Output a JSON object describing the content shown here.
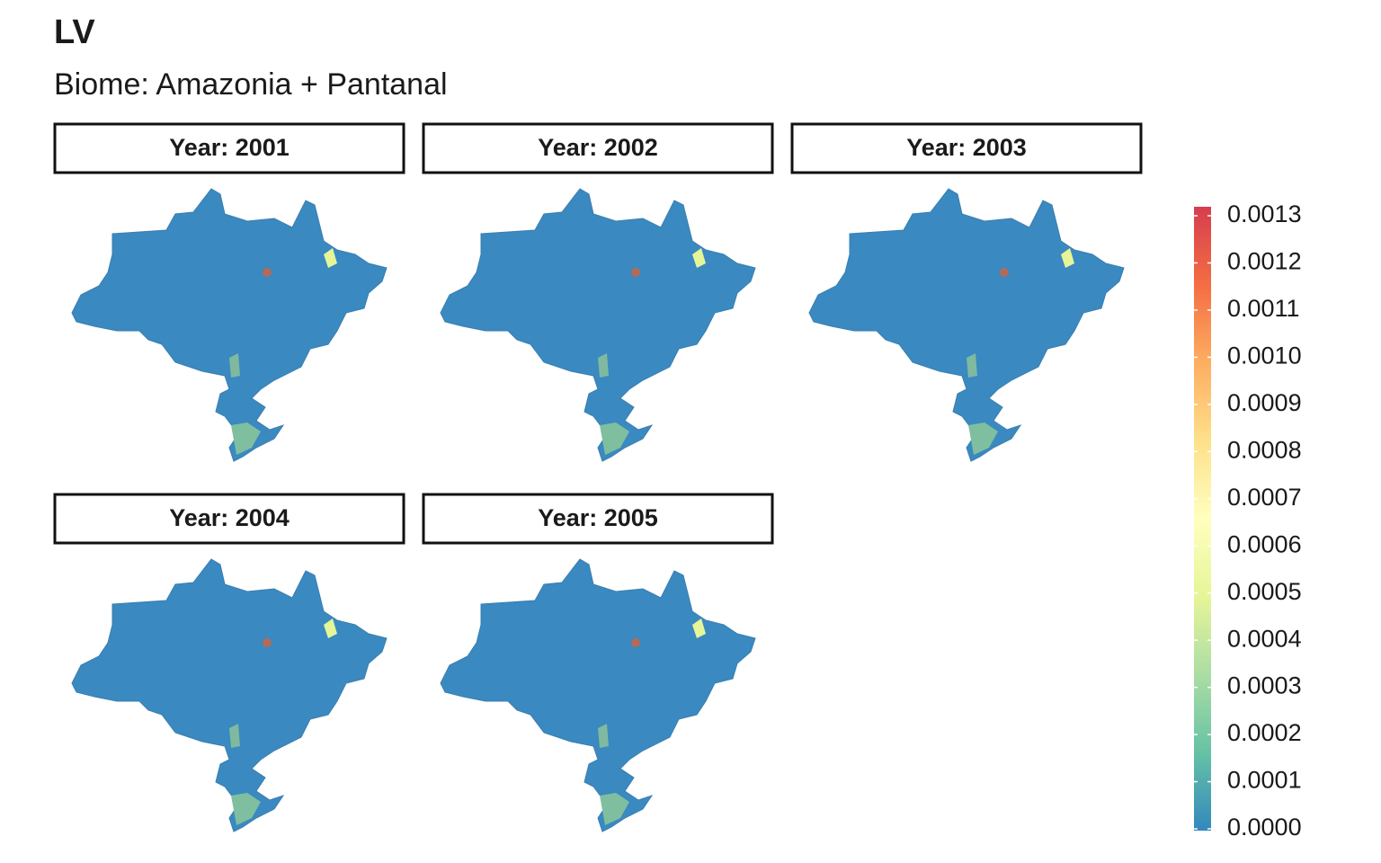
{
  "title": "LV",
  "subtitle": "Biome: Amazonia + Pantanal",
  "panels": [
    "Year: 2001",
    "Year: 2002",
    "Year: 2003",
    "Year: 2004",
    "Year: 2005"
  ],
  "chart_data": {
    "type": "colorbar",
    "ylim": [
      0,
      0.0013
    ],
    "yticks": [
      {
        "value": 0,
        "label": "0.0000"
      },
      0.0001,
      0.0002,
      0.0003,
      0.0004,
      0.0005,
      0.0006,
      0.0007,
      0.0008,
      0.0009,
      {
        "value": 0.001,
        "label": "0.0010"
      },
      0.0011,
      0.0012,
      0.0013
    ],
    "colors": [
      "#3288bd",
      "#66c2a5",
      "#abdda4",
      "#e6f598",
      "#ffffbf",
      "#fee08b",
      "#fdae61",
      "#f46d43",
      "#d53e4f"
    ]
  }
}
